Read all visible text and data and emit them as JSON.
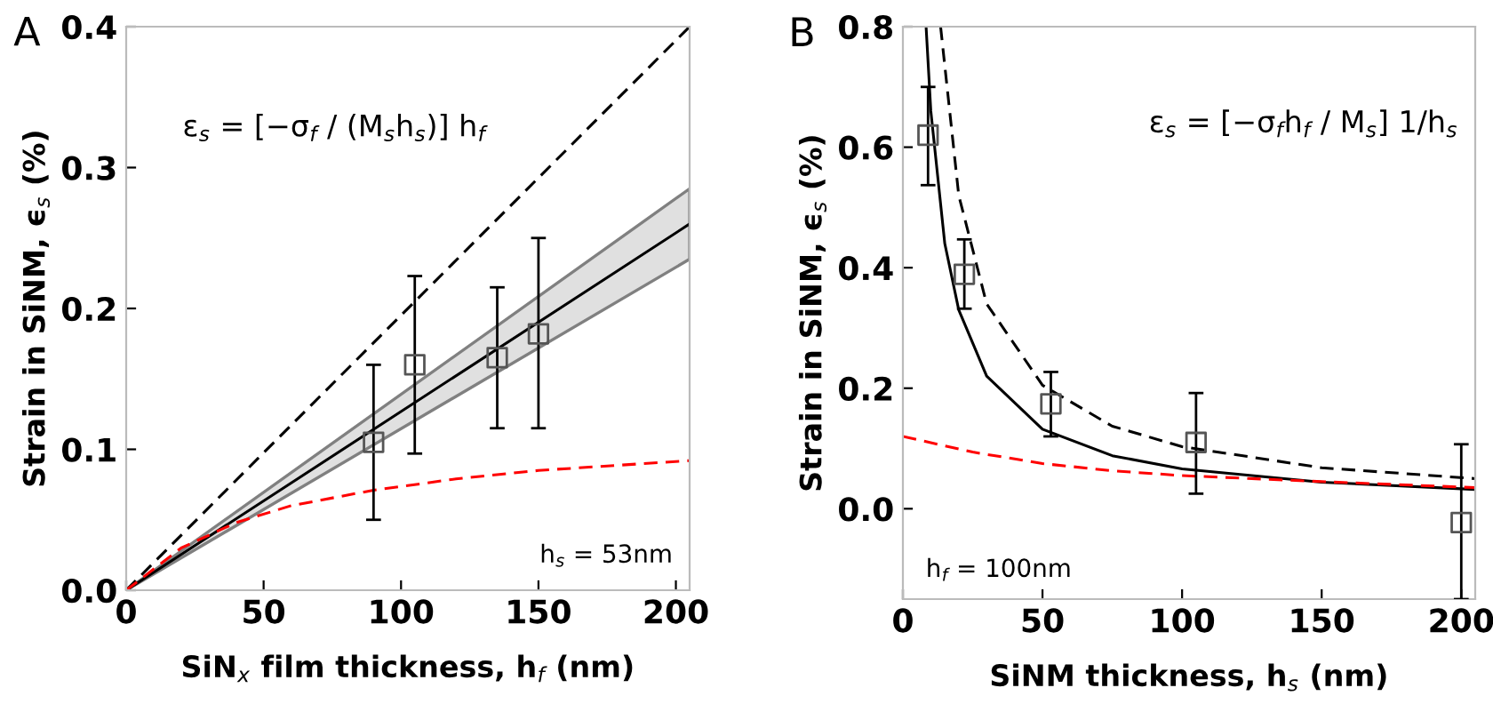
{
  "chart_data": [
    {
      "type": "line",
      "title": "A",
      "xlabel": "SiN$_{x}$ film thickness, h$_{f}$ (nm)",
      "ylabel": "Strain in SiNM, ϵ$_{s}$ (%)",
      "xlim": [
        0,
        205
      ],
      "ylim": [
        0,
        0.4
      ],
      "xticks": [
        0,
        50,
        100,
        150,
        200
      ],
      "yticks": [
        {
          "value": 0,
          "label": "0.0"
        },
        {
          "value": 0.1,
          "label": "0.1"
        },
        {
          "value": 0.2,
          "label": "0.2"
        },
        {
          "value": 0.3,
          "label": "0.3"
        },
        {
          "value": 0.4,
          "label": "0.4"
        }
      ],
      "grid": false,
      "legend": false,
      "annotations": [
        "ε$_{s}$ = [−σ$_{f}$ / (M$_{s}$h$_{s}$)] h$_{f}$",
        "h$_{s}$ = 53nm"
      ],
      "series": [
        {
          "color": "#000000",
          "line_style": "dashed",
          "x": [
            0,
            205
          ],
          "values": [
            0,
            0.4
          ]
        },
        {
          "color": "#000000",
          "line_style": "solid",
          "x": [
            0,
            205
          ],
          "values": [
            0,
            0.26
          ],
          "lower": [
            0,
            0.235
          ],
          "upper": [
            0,
            0.285
          ]
        },
        {
          "color": "#ff0000",
          "line_style": "dashed",
          "x": [
            0,
            20,
            40,
            60,
            90,
            120,
            150,
            205
          ],
          "values": [
            0,
            0.03,
            0.048,
            0.06,
            0.071,
            0.079,
            0.085,
            0.092
          ]
        },
        {
          "type": "scatter",
          "color": "#555555",
          "marker": "square",
          "x": [
            90,
            105,
            135,
            150
          ],
          "values": [
            0.105,
            0.16,
            0.165,
            0.182
          ],
          "errors": [
            [
              0.05,
              0.16
            ],
            [
              0.097,
              0.223
            ],
            [
              0.115,
              0.215
            ],
            [
              0.115,
              0.25
            ]
          ]
        }
      ]
    },
    {
      "type": "line",
      "title": "B",
      "xlabel": "SiNM thickness, h$_{s}$ (nm)",
      "ylabel": "Strain in SiNM, ϵ$_{s}$ (%)",
      "xlim": [
        0,
        205
      ],
      "ylim": [
        -0.15,
        0.8
      ],
      "xticks": [
        0,
        50,
        100,
        150,
        200
      ],
      "yticks": [
        {
          "value": 0,
          "label": "0.0"
        },
        {
          "value": 0.2,
          "label": "0.2"
        },
        {
          "value": 0.4,
          "label": "0.4"
        },
        {
          "value": 0.6,
          "label": "0.6"
        },
        {
          "value": 0.8,
          "label": "0.8"
        }
      ],
      "grid": false,
      "legend": false,
      "annotations": [
        "ε$_{s}$ = [−σ$_{f}$h$_{f}$ / M$_{s}$] 1/h$_{s}$",
        "h$_{f}$ = 100nm"
      ],
      "series": [
        {
          "color": "#000000",
          "line_style": "dashed",
          "x": [
            13.5,
            20,
            30,
            50,
            75,
            100,
            150,
            205
          ],
          "values": [
            0.8,
            0.52,
            0.34,
            0.205,
            0.137,
            0.103,
            0.068,
            0.05
          ]
        },
        {
          "color": "#000000",
          "line_style": "solid",
          "x": [
            8.3,
            10,
            15,
            20,
            30,
            50,
            75,
            100,
            150,
            205
          ],
          "values": [
            0.8,
            0.66,
            0.44,
            0.33,
            0.22,
            0.132,
            0.088,
            0.066,
            0.044,
            0.032
          ]
        },
        {
          "color": "#ff0000",
          "line_style": "dashed",
          "x": [
            0,
            25,
            50,
            75,
            100,
            150,
            205
          ],
          "values": [
            0.12,
            0.094,
            0.075,
            0.063,
            0.055,
            0.045,
            0.035
          ]
        },
        {
          "type": "scatter",
          "color": "#555555",
          "marker": "square",
          "x": [
            9,
            22,
            53,
            105,
            200
          ],
          "values": [
            0.62,
            0.389,
            0.174,
            0.11,
            -0.023
          ],
          "errors": [
            [
              0.537,
              0.7
            ],
            [
              0.332,
              0.447
            ],
            [
              0.12,
              0.227
            ],
            [
              0.025,
              0.192
            ],
            [
              -0.15,
              0.107
            ]
          ]
        }
      ]
    }
  ]
}
